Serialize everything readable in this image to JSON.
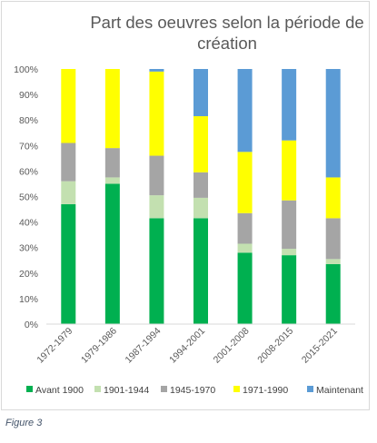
{
  "caption": "Figure 3",
  "chart_data": {
    "type": "bar",
    "stacked": "percent",
    "title_lines": [
      "Part des oeuvres selon la période de",
      "création"
    ],
    "xlabel": "",
    "ylabel": "",
    "ylim": [
      0,
      100
    ],
    "y_ticks": [
      "0%",
      "10%",
      "20%",
      "30%",
      "40%",
      "50%",
      "60%",
      "70%",
      "80%",
      "90%",
      "100%"
    ],
    "grid": false,
    "legend_position": "bottom",
    "categories": [
      "1972-1979",
      "1979-1986",
      "1987-1994",
      "1994-2001",
      "2001-2008",
      "2008-2015",
      "2015-2021"
    ],
    "series": [
      {
        "name": "Avant 1900",
        "color": "#00b050",
        "values": [
          47,
          55,
          41.5,
          41.5,
          28,
          27,
          23.5
        ]
      },
      {
        "name": "1901-1944",
        "color": "#c3e0b0",
        "values": [
          9,
          2.5,
          9,
          8,
          3.5,
          2.5,
          2
        ]
      },
      {
        "name": "1945-1970",
        "color": "#a5a5a5",
        "values": [
          15,
          11.5,
          15.5,
          10,
          12,
          19,
          16
        ]
      },
      {
        "name": "1971-1990",
        "color": "#ffff00",
        "values": [
          29,
          31,
          33,
          22,
          24,
          23.5,
          16
        ]
      },
      {
        "name": "Maintenant",
        "color": "#5b9bd5",
        "values": [
          0,
          0,
          1,
          18.5,
          32.5,
          28,
          42.5
        ]
      }
    ]
  }
}
